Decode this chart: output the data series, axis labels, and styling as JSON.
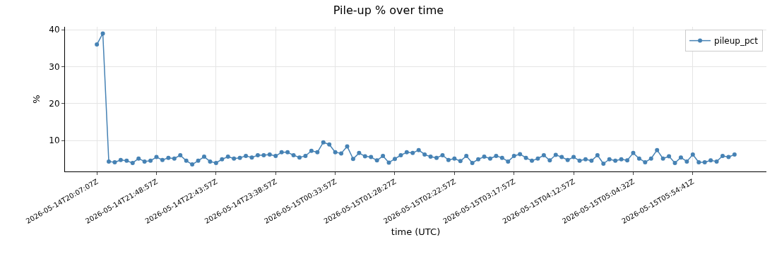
{
  "chart_data": {
    "type": "line",
    "title": "Pile-up % over time",
    "xlabel": "time (UTC)",
    "ylabel": "%",
    "categories": [
      "2026-05-14T20:07:07Z",
      null,
      null,
      null,
      null,
      null,
      null,
      null,
      null,
      null,
      "2026-05-14T21:48:57Z",
      null,
      null,
      null,
      null,
      null,
      null,
      null,
      null,
      null,
      "2026-05-14T22:43:57Z",
      null,
      null,
      null,
      null,
      null,
      null,
      null,
      null,
      null,
      "2026-05-14T23:38:57Z",
      null,
      null,
      null,
      null,
      null,
      null,
      null,
      null,
      null,
      "2026-05-15T00:33:57Z",
      null,
      null,
      null,
      null,
      null,
      null,
      null,
      null,
      null,
      "2026-05-15T01:28:27Z",
      null,
      null,
      null,
      null,
      null,
      null,
      null,
      null,
      null,
      "2026-05-15T02:22:57Z",
      null,
      null,
      null,
      null,
      null,
      null,
      null,
      null,
      null,
      "2026-05-15T03:17:57Z",
      null,
      null,
      null,
      null,
      null,
      null,
      null,
      null,
      null,
      "2026-05-15T04:12:57Z",
      null,
      null,
      null,
      null,
      null,
      null,
      null,
      null,
      null,
      "2026-05-15T05:04:32Z",
      null,
      null,
      null,
      null,
      null,
      null,
      null,
      null,
      null,
      "2026-05-15T05:54:41Z",
      null,
      null,
      null,
      null,
      null,
      null,
      null
    ],
    "series": [
      {
        "name": "pileup_pct",
        "color": "#4682b4",
        "values": [
          36,
          39,
          4.3,
          4.1,
          4.7,
          4.5,
          3.9,
          5.1,
          4.3,
          4.5,
          5.5,
          4.7,
          5.3,
          5.1,
          6.0,
          4.5,
          3.5,
          4.5,
          5.6,
          4.3,
          3.9,
          4.9,
          5.6,
          5.1,
          5.3,
          5.8,
          5.4,
          6.0,
          6.0,
          6.2,
          5.8,
          6.8,
          6.8,
          6.0,
          5.4,
          5.8,
          7.2,
          6.8,
          9.5,
          8.9,
          6.8,
          6.5,
          8.4,
          5.0,
          6.6,
          5.7,
          5.5,
          4.6,
          5.8,
          4.0,
          5.0,
          6.0,
          6.8,
          6.6,
          7.4,
          6.2,
          5.6,
          5.3,
          6.0,
          4.7,
          5.1,
          4.4,
          5.8,
          3.9,
          4.9,
          5.6,
          5.1,
          5.8,
          5.3,
          4.3,
          5.8,
          6.3,
          5.3,
          4.5,
          5.1,
          6.0,
          4.6,
          6.1,
          5.5,
          4.7,
          5.5,
          4.5,
          4.9,
          4.5,
          6.0,
          3.7,
          4.9,
          4.5,
          4.9,
          4.6,
          6.6,
          5.1,
          4.1,
          5.1,
          7.4,
          5.1,
          5.7,
          3.9,
          5.4,
          4.3,
          6.2,
          4.1,
          4.1,
          4.6,
          4.3,
          5.8,
          5.5,
          6.2
        ]
      }
    ],
    "ylim": [
      1.6,
      40.8
    ],
    "yticks": [
      10,
      20,
      30,
      40
    ],
    "grid": true,
    "legend": "top right",
    "marker": "circle",
    "line_style": "solid"
  }
}
